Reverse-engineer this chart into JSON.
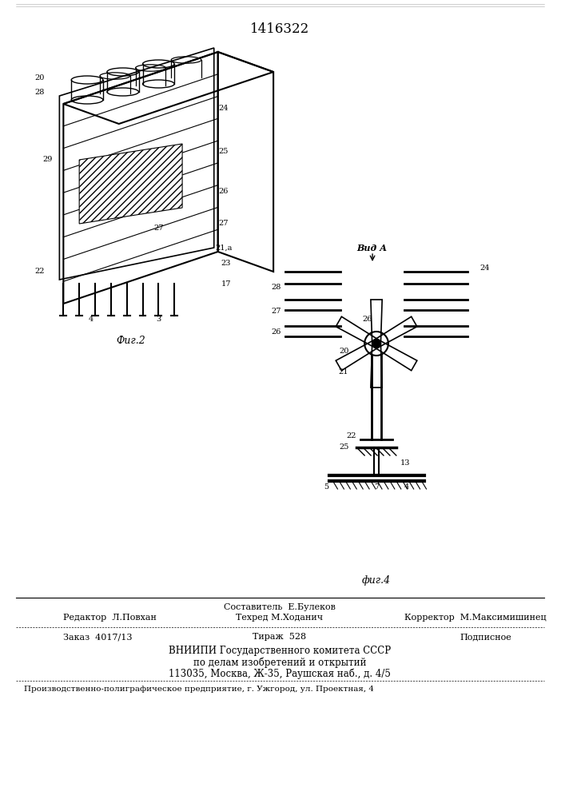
{
  "patent_number": "1416322",
  "fig2_label": "Фиг.2",
  "fig4_label": "фиг.4",
  "vid_a_label": "Вид А",
  "header_line1": "Составитель  Е.Булеков",
  "editor_label": "Редактор  Л.Повхан",
  "techred_label": "Техред М.Ходанич",
  "corrector_label": "Корректор  М.Максимишинец",
  "order_label": "Заказ  4017/13",
  "tirazh_label": "Тираж  528",
  "podpisnoe_label": "Подписное",
  "vniip1": "ВНИИПИ Государственного комитета СССР",
  "vniip2": "по делам изобретений и открытий",
  "vniip3": "113035, Москва, Ж-35, Раушская наб., д. 4/5",
  "production": "Производственно-полиграфическое предприятие, г. Ужгород, ул. Проектная, 4",
  "bg_color": "#ffffff",
  "line_color": "#000000",
  "text_color": "#000000"
}
